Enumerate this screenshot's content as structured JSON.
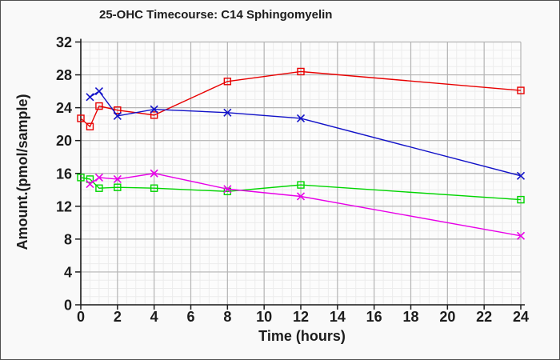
{
  "window": {
    "background_color": "#f9f9f9",
    "border_color": "#4f4f4f"
  },
  "chart_data": {
    "type": "line",
    "title": "25-OHC Timecourse: C14 Sphingomyelin",
    "xlabel": "Time (hours)",
    "ylabel": "Amount.(pmol/sample)",
    "xlim": [
      0,
      24
    ],
    "ylim": [
      0,
      32
    ],
    "x_ticks": [
      0,
      2,
      4,
      6,
      8,
      10,
      12,
      14,
      16,
      18,
      20,
      22,
      24
    ],
    "y_ticks": [
      0,
      4,
      8,
      12,
      16,
      20,
      24,
      28,
      32
    ],
    "x_minor_step": 0.5,
    "y_minor_step": 1,
    "grid": true,
    "legend": "none",
    "series": [
      {
        "name": "red-squares",
        "color": "#e80000",
        "marker": "square",
        "x": [
          0,
          0.5,
          1,
          2,
          4,
          8,
          12,
          24
        ],
        "y": [
          22.7,
          21.7,
          24.2,
          23.7,
          23.1,
          27.2,
          28.4,
          26.1
        ]
      },
      {
        "name": "blue-x",
        "color": "#1111c8",
        "marker": "x",
        "x": [
          0.5,
          1,
          2,
          4,
          8,
          12,
          24
        ],
        "y": [
          25.3,
          26.0,
          23.0,
          23.8,
          23.4,
          22.7,
          15.7
        ]
      },
      {
        "name": "green-squares",
        "color": "#00d500",
        "marker": "square",
        "x": [
          0,
          0.5,
          1,
          2,
          4,
          8,
          12,
          24
        ],
        "y": [
          15.5,
          15.3,
          14.2,
          14.3,
          14.2,
          13.8,
          14.6,
          12.8
        ]
      },
      {
        "name": "magenta-x",
        "color": "#e800e8",
        "marker": "x",
        "x": [
          0.5,
          1,
          2,
          4,
          8,
          12,
          24
        ],
        "y": [
          14.7,
          15.5,
          15.3,
          16.0,
          14.1,
          13.2,
          8.4
        ]
      }
    ]
  }
}
